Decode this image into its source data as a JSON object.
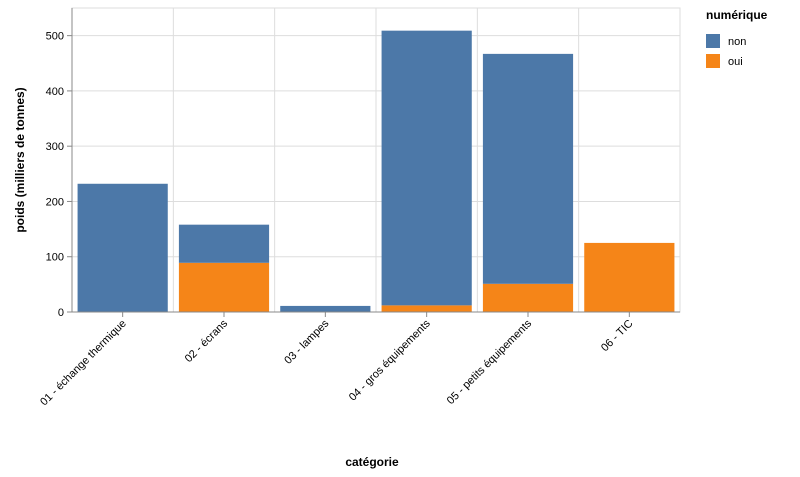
{
  "chart_data": {
    "type": "bar",
    "stacked": true,
    "x_label": "catégorie",
    "y_label": "poids (milliers de tonnes)",
    "legend_title": "numérique",
    "legend_position": "right",
    "categories": [
      "01 - échange thermique",
      "02 - écrans",
      "03 - lampes",
      "04 - gros équipements",
      "05 - petits équipements",
      "06 - TIC"
    ],
    "series": [
      {
        "name": "non",
        "color": "#4c78a8",
        "values": [
          232,
          69,
          11,
          497,
          416,
          0
        ]
      },
      {
        "name": "oui",
        "color": "#f58518",
        "values": [
          0,
          89,
          0,
          12,
          51,
          125
        ]
      }
    ],
    "stack_order": [
      "oui",
      "non"
    ],
    "ylim": [
      0,
      550
    ],
    "yticks": [
      0,
      100,
      200,
      300,
      400,
      500
    ],
    "grid": true
  }
}
